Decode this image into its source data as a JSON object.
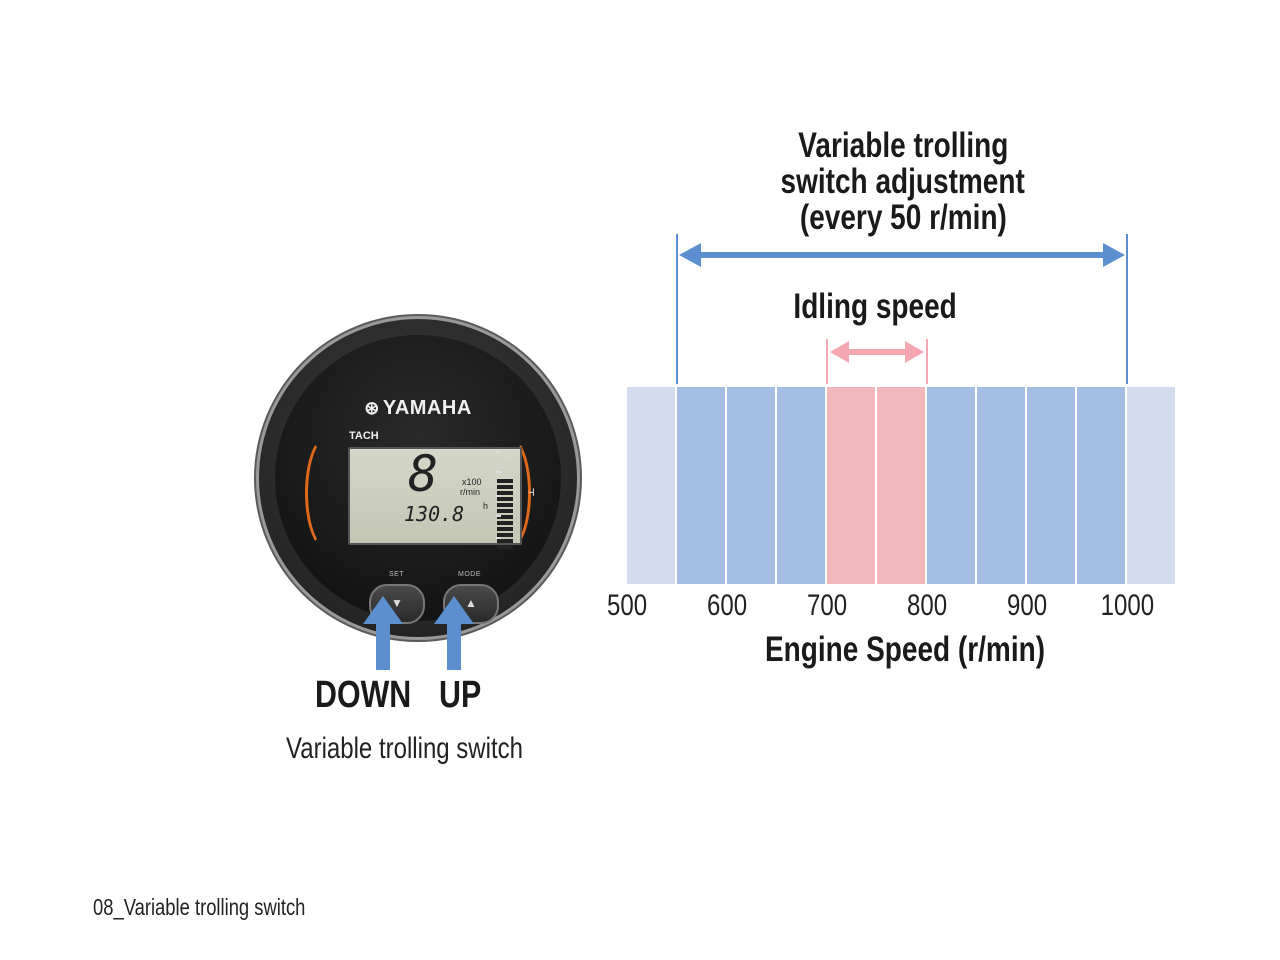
{
  "gauge": {
    "brand": "YAMAHA",
    "brand_logo_icon": "yamaha-tuning-fork-icon",
    "mode_label": "TACH",
    "lcd_digit": "8",
    "lcd_unit_multiplier": "x100",
    "lcd_unit": "r/min",
    "lcd_hours": "130.8",
    "lcd_hours_unit": "h",
    "btn_set_label": "SET",
    "btn_mode_label": "MODE",
    "btn_down_symbol": "▼",
    "btn_up_symbol": "▲"
  },
  "labels": {
    "down": "DOWN",
    "up": "UP",
    "switch": "Variable trolling switch"
  },
  "caption": "08_Variable trolling switch",
  "chart_data": {
    "type": "bar",
    "title_lines": [
      "Variable trolling",
      "switch adjustment",
      "(every 50 r/min)"
    ],
    "idle_label": "Idling speed",
    "xlabel": "Engine Speed (r/min)",
    "xlim": [
      500,
      1050
    ],
    "ticks": [
      "500",
      "600",
      "700",
      "800",
      "900",
      "1000"
    ],
    "tick_values": [
      500,
      600,
      700,
      800,
      900,
      1000
    ],
    "step": 50,
    "adjustment_range": [
      550,
      1000
    ],
    "idle_range": [
      700,
      800
    ],
    "colors": {
      "outside": "#d3dcee",
      "adjustment": "#a4bde3",
      "idle": "#f2b6bd",
      "blue_arrow": "#5b8fd0",
      "pink_arrow": "#f4a7b1"
    }
  }
}
